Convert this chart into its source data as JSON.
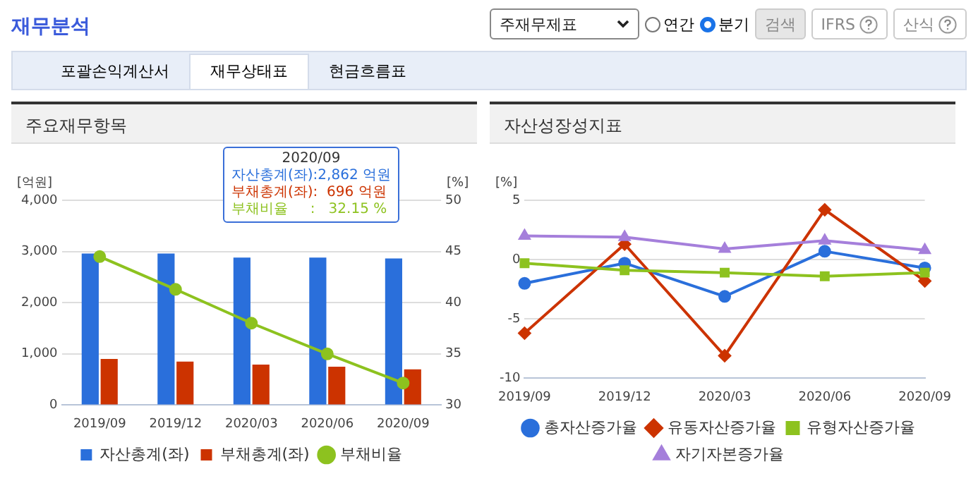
{
  "chart_data": [
    {
      "type": "bar",
      "title": "주요재무항목",
      "ylabel": "[억원]",
      "y2label": "[%]",
      "categories": [
        "2019/09",
        "2019/12",
        "2020/03",
        "2020/06",
        "2020/09"
      ],
      "series": [
        {
          "name": "자산총계(좌)",
          "color": "#2a6fdb",
          "values": [
            2960,
            2960,
            2880,
            2880,
            2862
          ]
        },
        {
          "name": "부채총계(좌)",
          "color": "#cc3300",
          "values": [
            900,
            850,
            790,
            750,
            696
          ]
        },
        {
          "type": "line",
          "name": "부채비율",
          "color": "#8dc21f",
          "axis": "y2",
          "marker": "circle",
          "values": [
            44.5,
            41.3,
            38,
            35,
            32.15
          ]
        }
      ],
      "ylim": [
        0,
        4000
      ],
      "yticks": [
        0,
        {
          "value": 1000,
          "label": "1,000"
        },
        {
          "value": 2000,
          "label": "2,000"
        },
        {
          "value": 3000,
          "label": "3,000"
        },
        {
          "value": 4000,
          "label": "4,000"
        }
      ],
      "y2lim": [
        30,
        50
      ],
      "y2ticks": [
        30,
        35,
        40,
        45,
        50
      ],
      "grid": "y",
      "legend": "bottom",
      "annotations": [
        "재무분석",
        "주재무제표",
        "연간",
        "분기",
        "검색",
        "IFRS",
        "산식",
        "포괄손익계산서",
        "재무상태표",
        "현금흐름표",
        "2020/09",
        "자산총계(좌):2,862 억원",
        "부채총계(좌):  696 억원",
        "부채비율     :   32.15 %"
      ]
    },
    {
      "type": "line",
      "title": "자산성장성지표",
      "ylabel": "[%]",
      "categories": [
        "2019/09",
        "2019/12",
        "2020/03",
        "2020/06",
        "2020/09"
      ],
      "series": [
        {
          "name": "총자산증가율",
          "color": "#2a6fdb",
          "marker": "circle",
          "values": [
            -2.0,
            -0.3,
            -3.1,
            0.7,
            -0.7
          ]
        },
        {
          "name": "유동자산증가율",
          "color": "#cc3300",
          "marker": "diamond",
          "values": [
            -6.2,
            1.3,
            -8.1,
            4.2,
            -1.8
          ]
        },
        {
          "name": "유형자산증가율",
          "color": "#8dc21f",
          "marker": "square",
          "values": [
            -0.3,
            -0.9,
            -1.1,
            -1.4,
            -1.1
          ]
        },
        {
          "name": "자기자본증가율",
          "color": "#a57fdb",
          "marker": "triangle",
          "values": [
            2.0,
            1.9,
            0.9,
            1.6,
            0.8
          ]
        }
      ],
      "ylim": [
        -10,
        5
      ],
      "yticks": [
        -10,
        -5,
        0,
        5
      ],
      "grid": "y",
      "legend": "bottom"
    }
  ]
}
